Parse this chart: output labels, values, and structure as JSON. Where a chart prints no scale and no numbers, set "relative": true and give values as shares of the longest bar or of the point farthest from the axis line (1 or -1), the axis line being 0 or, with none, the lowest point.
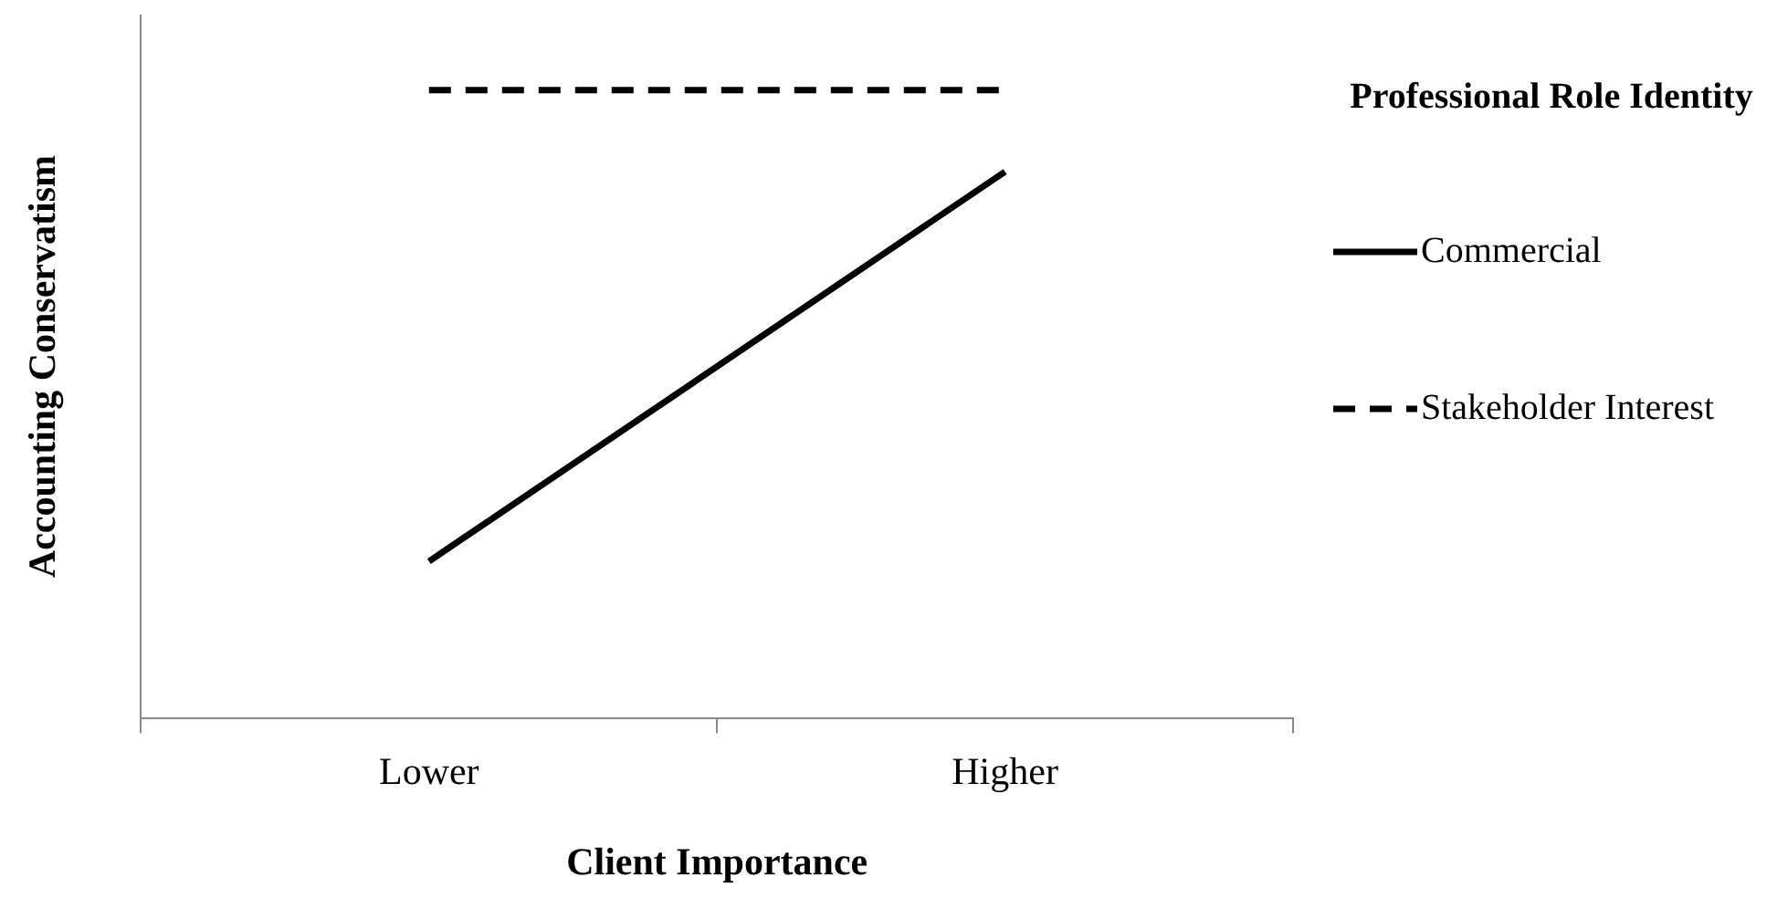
{
  "chart_data": {
    "type": "line",
    "xlabel": "Client Importance",
    "ylabel": "Accounting Conservatism",
    "legend_title": "Professional Role Identity",
    "categories": [
      "Lower",
      "Higher"
    ],
    "relative": true,
    "grid": false,
    "legend": "right",
    "marker": "none",
    "series": [
      {
        "name": "Commercial",
        "color": "#000000",
        "values": [
          0.25,
          0.87
        ],
        "line_style": "solid"
      },
      {
        "name": "Stakeholder Interest",
        "color": "#000000",
        "values": [
          1,
          1
        ],
        "line_style": "dashed"
      }
    ]
  }
}
